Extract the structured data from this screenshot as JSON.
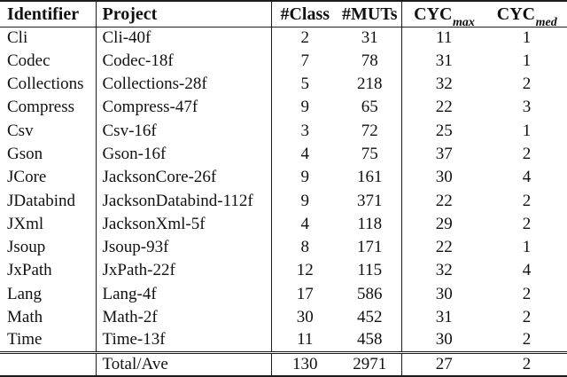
{
  "table": {
    "headers": {
      "identifier": "Identifier",
      "project": "Project",
      "num_class": "#Class",
      "num_muts": "#MUTs",
      "cyc": "CYC",
      "cyc_max_sub": "max",
      "cyc_med_sub": "med"
    },
    "rows": [
      {
        "identifier": "Cli",
        "project": "Cli-40f",
        "num_class": "2",
        "num_muts": "31",
        "cyc_max": "11",
        "cyc_med": "1"
      },
      {
        "identifier": "Codec",
        "project": "Codec-18f",
        "num_class": "7",
        "num_muts": "78",
        "cyc_max": "31",
        "cyc_med": "1"
      },
      {
        "identifier": "Collections",
        "project": "Collections-28f",
        "num_class": "5",
        "num_muts": "218",
        "cyc_max": "32",
        "cyc_med": "2"
      },
      {
        "identifier": "Compress",
        "project": "Compress-47f",
        "num_class": "9",
        "num_muts": "65",
        "cyc_max": "22",
        "cyc_med": "3"
      },
      {
        "identifier": "Csv",
        "project": "Csv-16f",
        "num_class": "3",
        "num_muts": "72",
        "cyc_max": "25",
        "cyc_med": "1"
      },
      {
        "identifier": "Gson",
        "project": "Gson-16f",
        "num_class": "4",
        "num_muts": "75",
        "cyc_max": "37",
        "cyc_med": "2"
      },
      {
        "identifier": "JCore",
        "project": "JacksonCore-26f",
        "num_class": "9",
        "num_muts": "161",
        "cyc_max": "30",
        "cyc_med": "4"
      },
      {
        "identifier": "JDatabind",
        "project": "JacksonDatabind-112f",
        "num_class": "9",
        "num_muts": "371",
        "cyc_max": "22",
        "cyc_med": "2"
      },
      {
        "identifier": "JXml",
        "project": "JacksonXml-5f",
        "num_class": "4",
        "num_muts": "118",
        "cyc_max": "29",
        "cyc_med": "2"
      },
      {
        "identifier": "Jsoup",
        "project": "Jsoup-93f",
        "num_class": "8",
        "num_muts": "171",
        "cyc_max": "22",
        "cyc_med": "1"
      },
      {
        "identifier": "JxPath",
        "project": "JxPath-22f",
        "num_class": "12",
        "num_muts": "115",
        "cyc_max": "32",
        "cyc_med": "4"
      },
      {
        "identifier": "Lang",
        "project": "Lang-4f",
        "num_class": "17",
        "num_muts": "586",
        "cyc_max": "30",
        "cyc_med": "2"
      },
      {
        "identifier": "Math",
        "project": "Math-2f",
        "num_class": "30",
        "num_muts": "452",
        "cyc_max": "31",
        "cyc_med": "2"
      },
      {
        "identifier": "Time",
        "project": "Time-13f",
        "num_class": "11",
        "num_muts": "458",
        "cyc_max": "30",
        "cyc_med": "2"
      }
    ],
    "total_row": {
      "identifier": "",
      "project": "Total/Ave",
      "num_class": "130",
      "num_muts": "2971",
      "cyc_max": "27",
      "cyc_med": "2"
    }
  }
}
